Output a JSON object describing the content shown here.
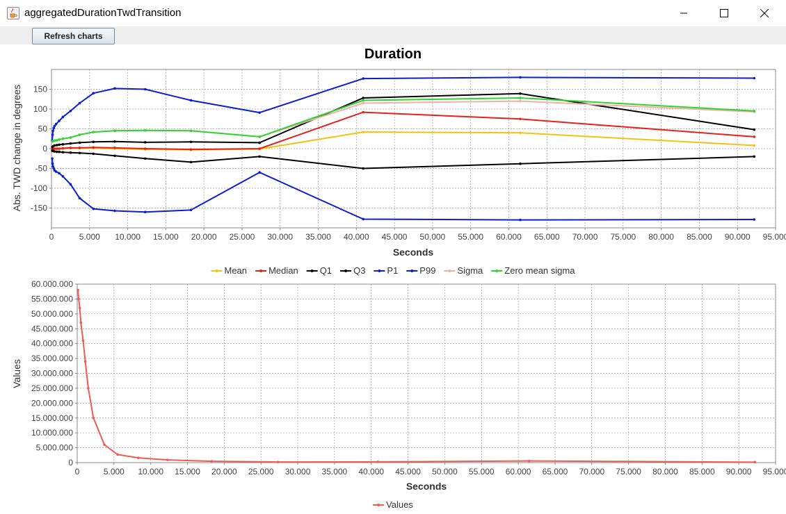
{
  "window": {
    "title": "aggregatedDurationTwdTransition"
  },
  "toolbar": {
    "refresh_label": "Refresh charts"
  },
  "chart_data": [
    {
      "type": "line",
      "title": "Duration",
      "xlabel": "Seconds",
      "ylabel": "Abs. TWD change in degrees",
      "xlim": [
        0,
        95000
      ],
      "ylim": [
        -200,
        200
      ],
      "xticks": [
        0,
        5000,
        10000,
        15000,
        20000,
        25000,
        30000,
        35000,
        40000,
        45000,
        50000,
        55000,
        60000,
        65000,
        70000,
        75000,
        80000,
        85000,
        90000,
        95000
      ],
      "xtick_labels": [
        "0",
        "5.000",
        "10.000",
        "15.000",
        "20.000",
        "25.000",
        "30.000",
        "35.000",
        "40.000",
        "45.000",
        "50.000",
        "55.000",
        "60.000",
        "65.000",
        "70.000",
        "75.000",
        "80.000",
        "85.000",
        "90.000",
        "95.000"
      ],
      "yticks": [
        -150,
        -100,
        -50,
        0,
        50,
        100,
        150
      ],
      "ytick_labels": [
        "-150",
        "-100",
        "-50",
        "0",
        "50",
        "100",
        "150"
      ],
      "grid": true,
      "legend_position": "bottom",
      "series": [
        {
          "name": "Mean",
          "color": "#f4c10f",
          "x": [
            100,
            200,
            400,
            700,
            1000,
            1500,
            2500,
            3700,
            5500,
            8300,
            12300,
            18300,
            27300,
            40900,
            61500,
            92200
          ],
          "y": [
            -3,
            -2,
            -1,
            -1,
            0,
            0,
            1,
            1,
            1,
            0,
            -2,
            -3,
            -1,
            42,
            40,
            8
          ]
        },
        {
          "name": "Median",
          "color": "#e8201a",
          "x": [
            100,
            200,
            400,
            700,
            1000,
            1500,
            2500,
            3700,
            5500,
            8300,
            12300,
            18300,
            27300,
            40900,
            61500,
            92200
          ],
          "y": [
            -1,
            -1,
            0,
            0,
            0,
            1,
            2,
            2,
            3,
            2,
            0,
            -2,
            0,
            92,
            75,
            30
          ]
        },
        {
          "name": "Q1",
          "color": "#000000",
          "x": [
            100,
            200,
            400,
            700,
            1000,
            1500,
            2500,
            3700,
            5500,
            8300,
            12300,
            18300,
            27300,
            40900,
            61500,
            92200
          ],
          "y": [
            -5,
            -6,
            -7,
            -8,
            -8,
            -9,
            -10,
            -11,
            -13,
            -18,
            -25,
            -34,
            -20,
            -50,
            -38,
            -20
          ]
        },
        {
          "name": "Q3",
          "color": "#000000",
          "x": [
            100,
            200,
            400,
            700,
            1000,
            1500,
            2500,
            3700,
            5500,
            8300,
            12300,
            18300,
            27300,
            40900,
            61500,
            92200
          ],
          "y": [
            4,
            6,
            8,
            9,
            10,
            11,
            13,
            15,
            17,
            18,
            16,
            17,
            15,
            128,
            139,
            48
          ]
        },
        {
          "name": "P1",
          "color": "#0a1ed6",
          "x": [
            100,
            150,
            200,
            300,
            400,
            600,
            1000,
            1500,
            2500,
            3700,
            5500,
            8300,
            12300,
            18300,
            27300,
            40900,
            61500,
            92200
          ],
          "y": [
            -25,
            -38,
            -45,
            -50,
            -55,
            -58,
            -62,
            -70,
            -90,
            -125,
            -152,
            -157,
            -160,
            -155,
            -60,
            -178,
            -180,
            -179
          ]
        },
        {
          "name": "P99",
          "color": "#0a1ed6",
          "x": [
            100,
            150,
            200,
            300,
            400,
            600,
            1000,
            1500,
            2500,
            3700,
            5500,
            8300,
            12300,
            18300,
            27300,
            40900,
            61500,
            92200
          ],
          "y": [
            20,
            35,
            45,
            52,
            57,
            62,
            70,
            80,
            95,
            115,
            140,
            152,
            150,
            122,
            91,
            177,
            180,
            178
          ]
        },
        {
          "name": "Sigma",
          "color": "#f0b0aa",
          "x": [
            100,
            200,
            400,
            700,
            1000,
            1500,
            2500,
            3700,
            5500,
            8300,
            12300,
            18300,
            27300,
            40900,
            61500,
            92200
          ],
          "y": [
            18,
            19,
            20,
            21,
            23,
            25,
            28,
            35,
            42,
            45,
            46,
            45,
            30,
            115,
            120,
            93
          ]
        },
        {
          "name": "Zero mean sigma",
          "color": "#2ed62e",
          "x": [
            100,
            200,
            400,
            700,
            1000,
            1500,
            2500,
            3700,
            5500,
            8300,
            12300,
            18300,
            27300,
            40900,
            61500,
            92200
          ],
          "y": [
            18,
            19,
            20,
            21,
            23,
            25,
            28,
            35,
            42,
            45,
            46,
            45,
            30,
            122,
            128,
            95
          ]
        }
      ]
    },
    {
      "type": "line",
      "title": "",
      "xlabel": "Seconds",
      "ylabel": "Values",
      "xlim": [
        0,
        95000
      ],
      "ylim": [
        0,
        60000000
      ],
      "xticks": [
        0,
        5000,
        10000,
        15000,
        20000,
        25000,
        30000,
        35000,
        40000,
        45000,
        50000,
        55000,
        60000,
        65000,
        70000,
        75000,
        80000,
        85000,
        90000,
        95000
      ],
      "xtick_labels": [
        "0",
        "5.000",
        "10.000",
        "15.000",
        "20.000",
        "25.000",
        "30.000",
        "35.000",
        "40.000",
        "45.000",
        "50.000",
        "55.000",
        "60.000",
        "65.000",
        "70.000",
        "75.000",
        "80.000",
        "85.000",
        "90.000",
        "95.000"
      ],
      "yticks": [
        0,
        5000000,
        10000000,
        15000000,
        20000000,
        25000000,
        30000000,
        35000000,
        40000000,
        45000000,
        50000000,
        55000000,
        60000000
      ],
      "ytick_labels": [
        "0",
        "5.000.000",
        "10.000.000",
        "15.000.000",
        "20.000.000",
        "25.000.000",
        "30.000.000",
        "35.000.000",
        "40.000.000",
        "45.000.000",
        "50.000.000",
        "55.000.000",
        "60.000.000"
      ],
      "grid": true,
      "legend_position": "bottom",
      "series": [
        {
          "name": "Values",
          "color": "#f05a50",
          "x": [
            100,
            200,
            350,
            500,
            800,
            1100,
            1500,
            2200,
            3700,
            5500,
            8300,
            12300,
            18300,
            27300,
            40900,
            61500,
            92200
          ],
          "y": [
            58000000,
            55000000,
            52000000,
            47000000,
            41000000,
            34000000,
            25000000,
            15000000,
            6000000,
            2700000,
            1600000,
            900000,
            450000,
            200000,
            250000,
            550000,
            150000
          ]
        }
      ]
    }
  ]
}
